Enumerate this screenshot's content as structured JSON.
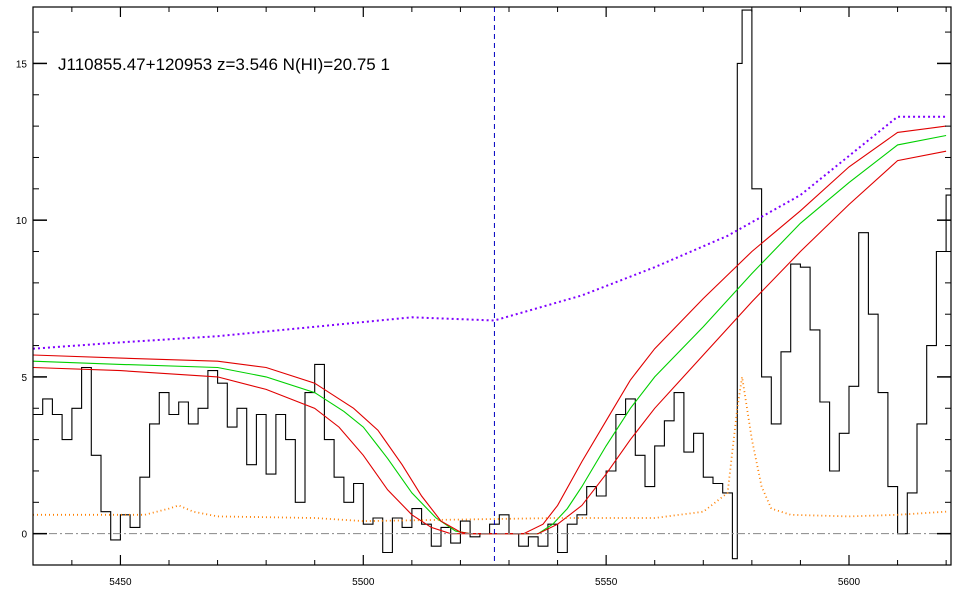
{
  "chart_data": {
    "type": "line",
    "title": "J110855.47+120953 z=3.546 N(HI)=20.75 1",
    "xlabel": "",
    "ylabel": "",
    "xlim": [
      5432,
      5621
    ],
    "ylim": [
      -1,
      16.8
    ],
    "grid": false,
    "xticks": [
      5450,
      5500,
      5550,
      5600
    ],
    "yticks": [
      0,
      5,
      10,
      15
    ],
    "colors": {
      "flux": "#000000",
      "model": "#00d000",
      "model_bounds": "#e00000",
      "continuum": "#8000ff",
      "error": "#ff8000",
      "center_line": "#0000c0",
      "zero_line": "#888888"
    },
    "center_wavelength": 5527,
    "zero_level": 0,
    "series": [
      {
        "style": "step",
        "color_key": "flux",
        "x": [
          5432,
          5434,
          5436,
          5438,
          5440,
          5442,
          5444,
          5446,
          5448,
          5450,
          5452,
          5454,
          5456,
          5458,
          5460,
          5462,
          5464,
          5466,
          5468,
          5470,
          5472,
          5474,
          5476,
          5478,
          5480,
          5482,
          5484,
          5486,
          5488,
          5490,
          5492,
          5494,
          5496,
          5498,
          5500,
          5502,
          5504,
          5506,
          5508,
          5510,
          5512,
          5514,
          5516,
          5518,
          5520,
          5522,
          5524,
          5526,
          5528,
          5530,
          5532,
          5534,
          5536,
          5538,
          5540,
          5542,
          5544,
          5546,
          5548,
          5550,
          5552,
          5554,
          5556,
          5558,
          5560,
          5562,
          5564,
          5566,
          5568,
          5570,
          5572,
          5574,
          5576,
          5577,
          5578,
          5580,
          5582,
          5584,
          5586,
          5588,
          5590,
          5592,
          5594,
          5596,
          5598,
          5600,
          5602,
          5604,
          5606,
          5608,
          5610,
          5612,
          5614,
          5616,
          5618,
          5620
        ],
        "y": [
          3.8,
          4.3,
          3.8,
          3.0,
          4.0,
          5.3,
          2.5,
          0.7,
          -0.2,
          0.6,
          0.2,
          1.8,
          3.5,
          4.5,
          3.8,
          4.2,
          3.5,
          4.0,
          5.2,
          4.8,
          3.4,
          4.0,
          2.2,
          3.8,
          1.9,
          3.8,
          3.0,
          1.0,
          4.5,
          5.4,
          3.0,
          1.8,
          1.0,
          1.6,
          0.3,
          0.5,
          -0.6,
          0.5,
          0.2,
          0.8,
          0.3,
          -0.4,
          0.2,
          -0.3,
          0.4,
          -0.1,
          0.0,
          0.3,
          0.6,
          0.0,
          -0.4,
          -0.1,
          -0.4,
          0.3,
          -0.6,
          0.3,
          0.6,
          1.5,
          1.2,
          2.0,
          3.8,
          4.3,
          2.5,
          1.5,
          2.8,
          3.6,
          4.5,
          2.6,
          3.2,
          1.8,
          1.6,
          1.3,
          -0.8,
          15.0,
          16.7,
          11.0,
          5.0,
          3.5,
          5.8,
          8.6,
          8.5,
          6.5,
          4.2,
          2.0,
          3.2,
          4.7,
          9.6,
          7.0,
          4.5,
          1.5,
          0.0,
          1.3,
          3.5,
          6.0,
          9.0,
          10.8
        ]
      },
      {
        "style": "line",
        "color_key": "continuum",
        "dashed": true,
        "x": [
          5432,
          5450,
          5470,
          5490,
          5510,
          5527,
          5545,
          5560,
          5575,
          5590,
          5610,
          5620
        ],
        "y": [
          5.9,
          6.1,
          6.3,
          6.6,
          6.9,
          6.8,
          7.6,
          8.5,
          9.5,
          10.8,
          13.3,
          13.3
        ]
      },
      {
        "style": "line",
        "color_key": "model",
        "x": [
          5432,
          5450,
          5470,
          5480,
          5490,
          5496,
          5500,
          5505,
          5510,
          5515,
          5519,
          5522,
          5530,
          5536,
          5539,
          5542,
          5545,
          5550,
          5555,
          5560,
          5570,
          5580,
          5590,
          5600,
          5610,
          5620
        ],
        "y": [
          5.5,
          5.4,
          5.3,
          5.0,
          4.5,
          3.9,
          3.4,
          2.4,
          1.3,
          0.5,
          0.08,
          0.0,
          0.0,
          0.0,
          0.3,
          0.8,
          1.5,
          2.8,
          4.0,
          5.0,
          6.6,
          8.3,
          9.9,
          11.2,
          12.4,
          12.7
        ]
      },
      {
        "style": "line",
        "color_key": "model_bounds",
        "x": [
          5432,
          5450,
          5470,
          5480,
          5490,
          5498,
          5503,
          5508,
          5512,
          5516,
          5520,
          5522,
          5533,
          5537,
          5540,
          5545,
          5550,
          5555,
          5560,
          5570,
          5580,
          5590,
          5600,
          5610,
          5620
        ],
        "y": [
          5.7,
          5.6,
          5.5,
          5.3,
          4.8,
          4.0,
          3.3,
          2.2,
          1.2,
          0.4,
          0.05,
          0.0,
          0.0,
          0.3,
          0.9,
          2.3,
          3.6,
          4.9,
          5.9,
          7.5,
          9.0,
          10.3,
          11.7,
          12.8,
          13.0
        ]
      },
      {
        "style": "line",
        "color_key": "model_bounds",
        "x": [
          5432,
          5450,
          5470,
          5480,
          5490,
          5495,
          5500,
          5505,
          5510,
          5514,
          5518,
          5520,
          5536,
          5540,
          5545,
          5550,
          5555,
          5560,
          5570,
          5580,
          5590,
          5600,
          5610,
          5620
        ],
        "y": [
          5.3,
          5.2,
          5.0,
          4.6,
          4.0,
          3.4,
          2.5,
          1.4,
          0.6,
          0.2,
          0.0,
          0.0,
          0.0,
          0.3,
          0.9,
          1.9,
          3.0,
          4.0,
          5.7,
          7.4,
          9.0,
          10.5,
          11.9,
          12.2
        ]
      },
      {
        "style": "line",
        "color_key": "error",
        "dotted": true,
        "x": [
          5432,
          5455,
          5460,
          5462,
          5465,
          5470,
          5490,
          5500,
          5540,
          5560,
          5570,
          5575,
          5577,
          5578,
          5580,
          5582,
          5584,
          5588,
          5600,
          5610,
          5620
        ],
        "y": [
          0.6,
          0.6,
          0.8,
          0.9,
          0.7,
          0.55,
          0.5,
          0.4,
          0.5,
          0.5,
          0.7,
          1.3,
          4.0,
          5.0,
          3.0,
          1.5,
          0.8,
          0.6,
          0.55,
          0.6,
          0.7
        ]
      }
    ]
  }
}
